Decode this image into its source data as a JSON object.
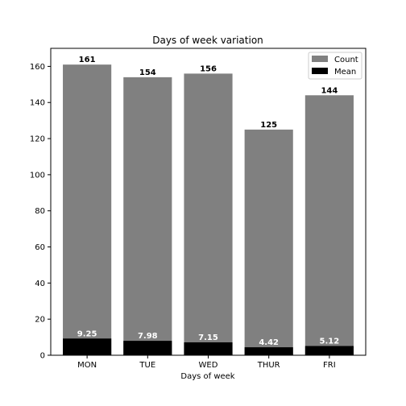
{
  "chart_data": {
    "type": "bar",
    "title": "Days of week variation",
    "xlabel": "Days of week",
    "ylabel": "",
    "categories": [
      "MON",
      "TUE",
      "WED",
      "THUR",
      "FRI"
    ],
    "ylim": [
      0,
      170
    ],
    "yticks": [
      0,
      20,
      40,
      60,
      80,
      100,
      120,
      140,
      160
    ],
    "ytick_labels": [
      "0",
      "20",
      "40",
      "60",
      "80",
      "100",
      "120",
      "140",
      "160"
    ],
    "grid": false,
    "legend_position": "top-right",
    "series": [
      {
        "name": "Count",
        "color": "#808080",
        "values": [
          161,
          154,
          156,
          125,
          144
        ],
        "labels": [
          "161",
          "154",
          "156",
          "125",
          "144"
        ],
        "label_color": "#000000"
      },
      {
        "name": "Mean",
        "color": "#000000",
        "values": [
          9.25,
          7.98,
          7.15,
          4.42,
          5.12
        ],
        "labels": [
          "9.25",
          "7.98",
          "7.15",
          "4.42",
          "5.12"
        ],
        "label_color": "#ffffff"
      }
    ]
  }
}
